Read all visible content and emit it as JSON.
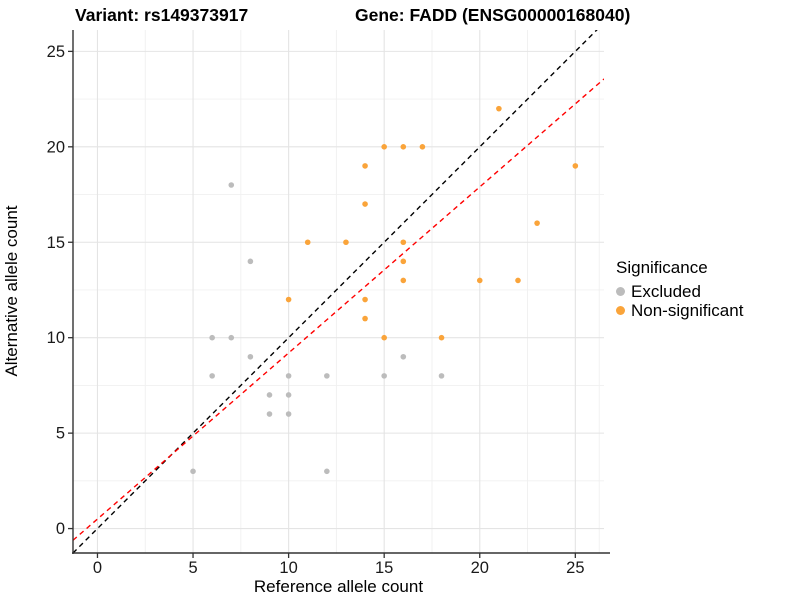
{
  "header": {
    "title_left": "Variant: rs149373917",
    "title_right": "Gene: FADD (ENSG00000168040)"
  },
  "legend": {
    "title": "Significance",
    "items": [
      {
        "label": "Excluded",
        "color": "#BCBCBC"
      },
      {
        "label": "Non-significant",
        "color": "#FAA43A"
      }
    ]
  },
  "chart_data": {
    "type": "scatter",
    "xlabel": "Reference allele count",
    "ylabel": "Alternative allele count",
    "x_ticks": [
      0,
      5,
      10,
      15,
      20,
      25
    ],
    "y_ticks": [
      0,
      5,
      10,
      15,
      20,
      25
    ],
    "x_minor": [
      2.5,
      7.5,
      12.5,
      17.5,
      22.5,
      26.25
    ],
    "y_minor": [
      2.5,
      7.5,
      12.5,
      17.5,
      22.5
    ],
    "xlim": [
      -1.28,
      26.5
    ],
    "ylim": [
      -1.28,
      26.12
    ],
    "grid": true,
    "legend_position": "right",
    "series": [
      {
        "name": "Excluded",
        "color": "#BCBCBC",
        "points": [
          [
            5,
            3
          ],
          [
            6,
            8
          ],
          [
            6,
            10
          ],
          [
            7,
            10
          ],
          [
            7,
            18
          ],
          [
            8,
            9
          ],
          [
            8,
            14
          ],
          [
            9,
            6
          ],
          [
            9,
            7
          ],
          [
            10,
            6
          ],
          [
            10,
            7
          ],
          [
            10,
            8
          ],
          [
            12,
            3
          ],
          [
            12,
            8
          ],
          [
            15,
            8
          ],
          [
            16,
            9
          ],
          [
            18,
            8
          ]
        ]
      },
      {
        "name": "Non-significant",
        "color": "#FAA43A",
        "points": [
          [
            10,
            12
          ],
          [
            11,
            15
          ],
          [
            13,
            15
          ],
          [
            14,
            11
          ],
          [
            14,
            12
          ],
          [
            14,
            17
          ],
          [
            14,
            19
          ],
          [
            15,
            10
          ],
          [
            15,
            20
          ],
          [
            16,
            13
          ],
          [
            16,
            14
          ],
          [
            16,
            15
          ],
          [
            16,
            20
          ],
          [
            17,
            20
          ],
          [
            18,
            10
          ],
          [
            20,
            13
          ],
          [
            21,
            22
          ],
          [
            22,
            13
          ],
          [
            23,
            16
          ],
          [
            25,
            19
          ]
        ]
      }
    ],
    "lines": [
      {
        "name": "identity-line",
        "color": "#000000",
        "slope": 1,
        "intercept": 0,
        "dash": "5,4"
      },
      {
        "name": "fit-line",
        "color": "#FF0000",
        "slope": 0.87,
        "intercept": 0.5,
        "dash": "5,4"
      }
    ]
  }
}
